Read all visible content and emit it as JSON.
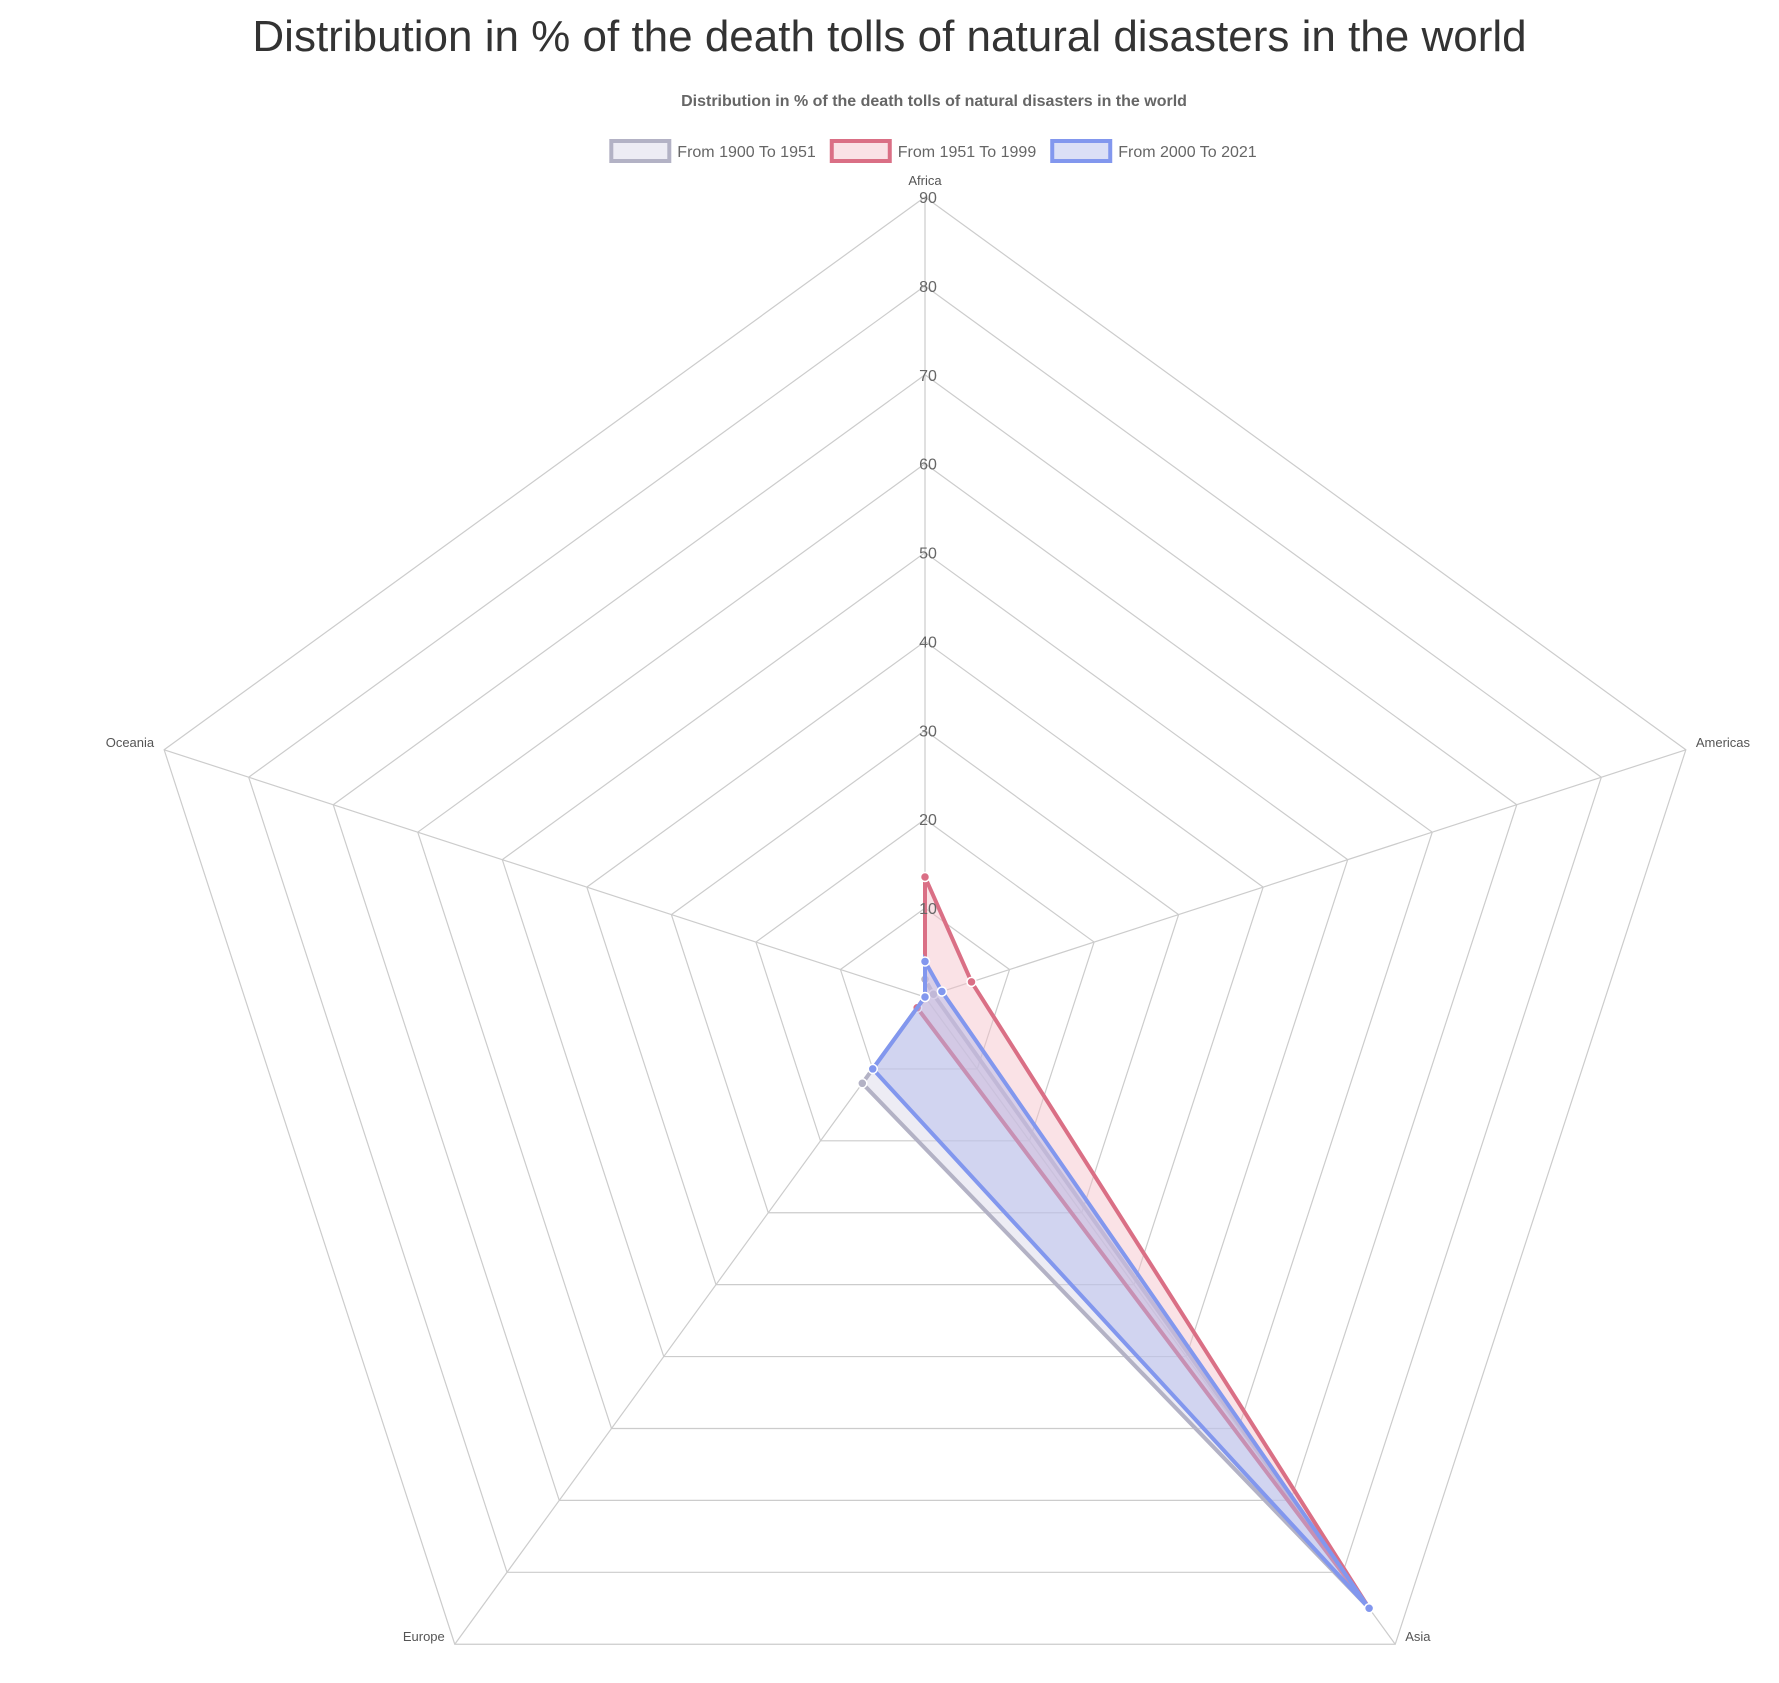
{
  "page": {
    "title": "Distribution in % of the death tolls of natural disasters in the world"
  },
  "chart_data": {
    "type": "radar",
    "title": "Distribution in % of the death tolls of natural disasters in the world",
    "categories": [
      "Africa",
      "Americas",
      "Asia",
      "Europe",
      "Oceania"
    ],
    "rlim": [
      0,
      90
    ],
    "ticks": [
      10,
      20,
      30,
      40,
      50,
      60,
      70,
      80,
      90
    ],
    "grid": true,
    "legend_position": "top",
    "series": [
      {
        "name": "From 1900 To 1951",
        "values": [
          2,
          1,
          85,
          12,
          0
        ],
        "color": "#b3b2c5",
        "fill": "rgba(215,213,230,0.45)"
      },
      {
        "name": "From 1951 To 1999",
        "values": [
          13.5,
          5.5,
          85,
          1.5,
          0
        ],
        "color": "#da6f85",
        "fill": "rgba(245,190,200,0.45)"
      },
      {
        "name": "From 2000 To 2021",
        "values": [
          4,
          2,
          85,
          10,
          0
        ],
        "color": "#8297ee",
        "fill": "rgba(175,185,235,0.45)"
      }
    ]
  }
}
